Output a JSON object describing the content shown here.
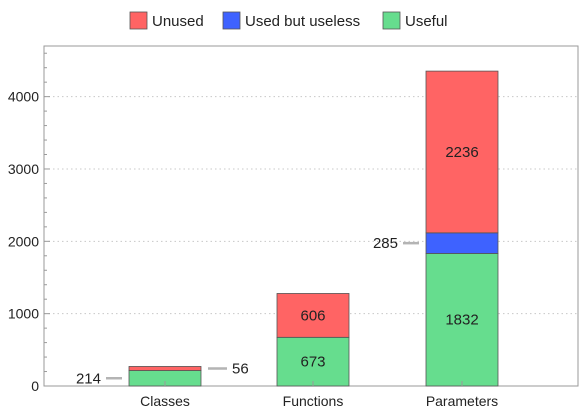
{
  "chart_data": {
    "type": "bar",
    "stacked": true,
    "categories": [
      "Classes",
      "Functions",
      "Parameters"
    ],
    "series": [
      {
        "name": "Useful",
        "color": "#66dd8e",
        "values": [
          214,
          673,
          1832
        ]
      },
      {
        "name": "Used but useless",
        "color": "#3e62ff",
        "values": [
          0,
          0,
          285
        ]
      },
      {
        "name": "Unused",
        "color": "#ff6464",
        "values": [
          56,
          606,
          2236
        ]
      }
    ],
    "legend_order": [
      "Unused",
      "Used but useless",
      "Useful"
    ],
    "legend_placement": "top-center",
    "ylim": [
      0,
      4700
    ],
    "yticks": [
      0,
      1000,
      2000,
      3000,
      4000
    ],
    "grid": "horizontal dotted at major ticks",
    "title": "",
    "xlabel": "",
    "ylabel": "",
    "data_labels": [
      {
        "text": "214",
        "category": "Classes",
        "series": "Useful",
        "placement": "outside-left"
      },
      {
        "text": "56",
        "category": "Classes",
        "series": "Unused",
        "placement": "outside-right"
      },
      {
        "text": "673",
        "category": "Functions",
        "series": "Useful",
        "placement": "inside"
      },
      {
        "text": "606",
        "category": "Functions",
        "series": "Unused",
        "placement": "inside"
      },
      {
        "text": "1832",
        "category": "Parameters",
        "series": "Useful",
        "placement": "inside"
      },
      {
        "text": "285",
        "category": "Parameters",
        "series": "Used but useless",
        "placement": "outside-left"
      },
      {
        "text": "2236",
        "category": "Parameters",
        "series": "Unused",
        "placement": "inside"
      }
    ]
  }
}
